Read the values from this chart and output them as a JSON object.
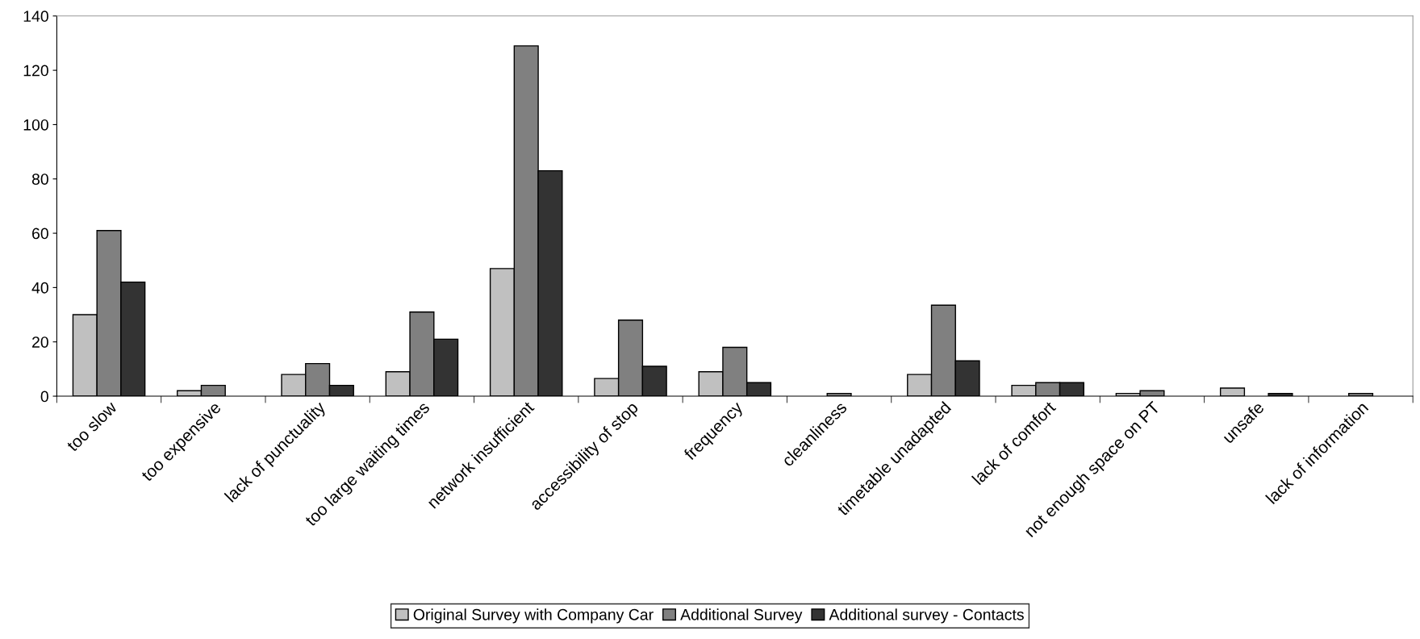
{
  "chart_data": {
    "type": "bar",
    "categories": [
      "too slow",
      "too expensive",
      "lack of punctuality",
      "too large waiting times",
      "network insufficient",
      "accessibility of stop",
      "frequency",
      "cleanliness",
      "timetable unadapted",
      "lack of comfort",
      "not enough space on PT",
      "unsafe",
      "lack of information"
    ],
    "series": [
      {
        "name": "Original Survey with Company Car",
        "color": "#c0c0c0",
        "values": [
          30,
          2,
          8,
          9,
          47,
          6.5,
          9,
          null,
          8,
          4,
          1,
          3,
          null
        ]
      },
      {
        "name": "Additional Survey",
        "color": "#808080",
        "values": [
          61,
          4,
          12,
          31,
          129,
          28,
          18,
          1,
          33.5,
          5,
          2,
          null,
          1
        ]
      },
      {
        "name": "Additional survey - Contacts",
        "color": "#333333",
        "values": [
          42,
          null,
          4,
          21,
          83,
          11,
          5,
          null,
          13,
          5,
          null,
          1,
          null
        ]
      }
    ],
    "ylim": [
      0,
      140
    ],
    "yticks": [
      0,
      20,
      40,
      60,
      80,
      100,
      120,
      140
    ],
    "grid": false,
    "legend": "bottom"
  }
}
